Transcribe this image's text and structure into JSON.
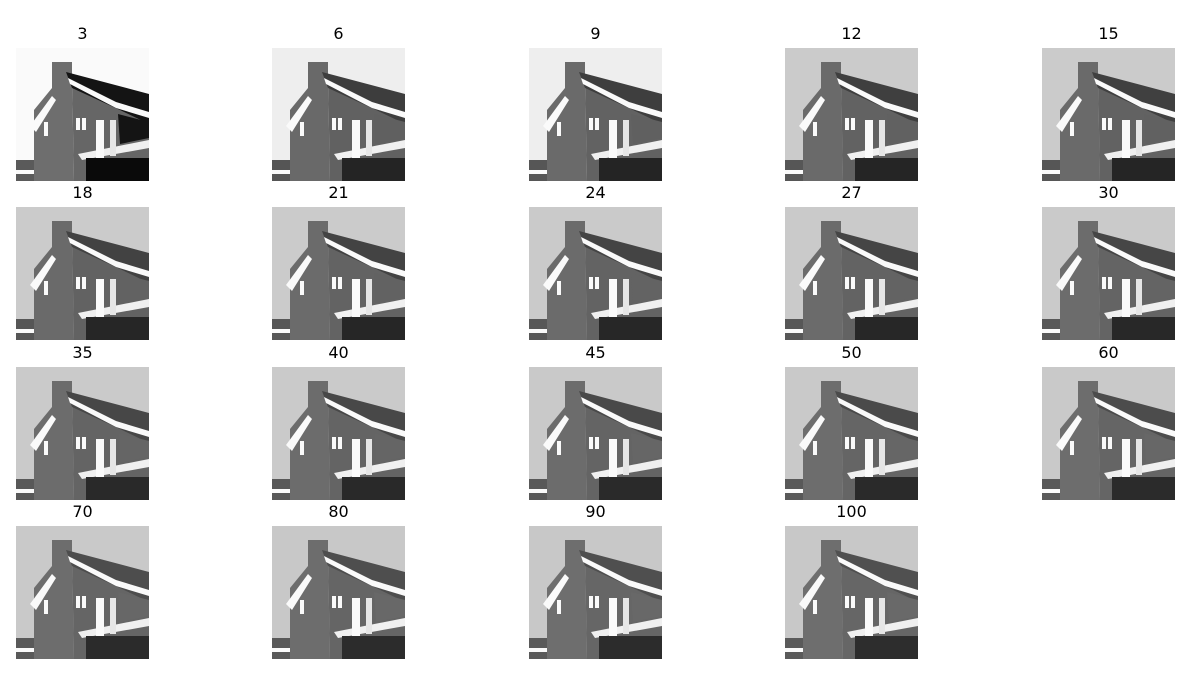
{
  "figure": {
    "panels": [
      {
        "title": "3"
      },
      {
        "title": "6"
      },
      {
        "title": "9"
      },
      {
        "title": "12"
      },
      {
        "title": "15"
      },
      {
        "title": "18"
      },
      {
        "title": "21"
      },
      {
        "title": "24"
      },
      {
        "title": "27"
      },
      {
        "title": "30"
      },
      {
        "title": "35"
      },
      {
        "title": "40"
      },
      {
        "title": "45"
      },
      {
        "title": "50"
      },
      {
        "title": "60"
      },
      {
        "title": "70"
      },
      {
        "title": "80"
      },
      {
        "title": "90"
      },
      {
        "title": "100"
      }
    ]
  },
  "colors": {
    "background": "#ffffff",
    "title_text": "#000000"
  }
}
